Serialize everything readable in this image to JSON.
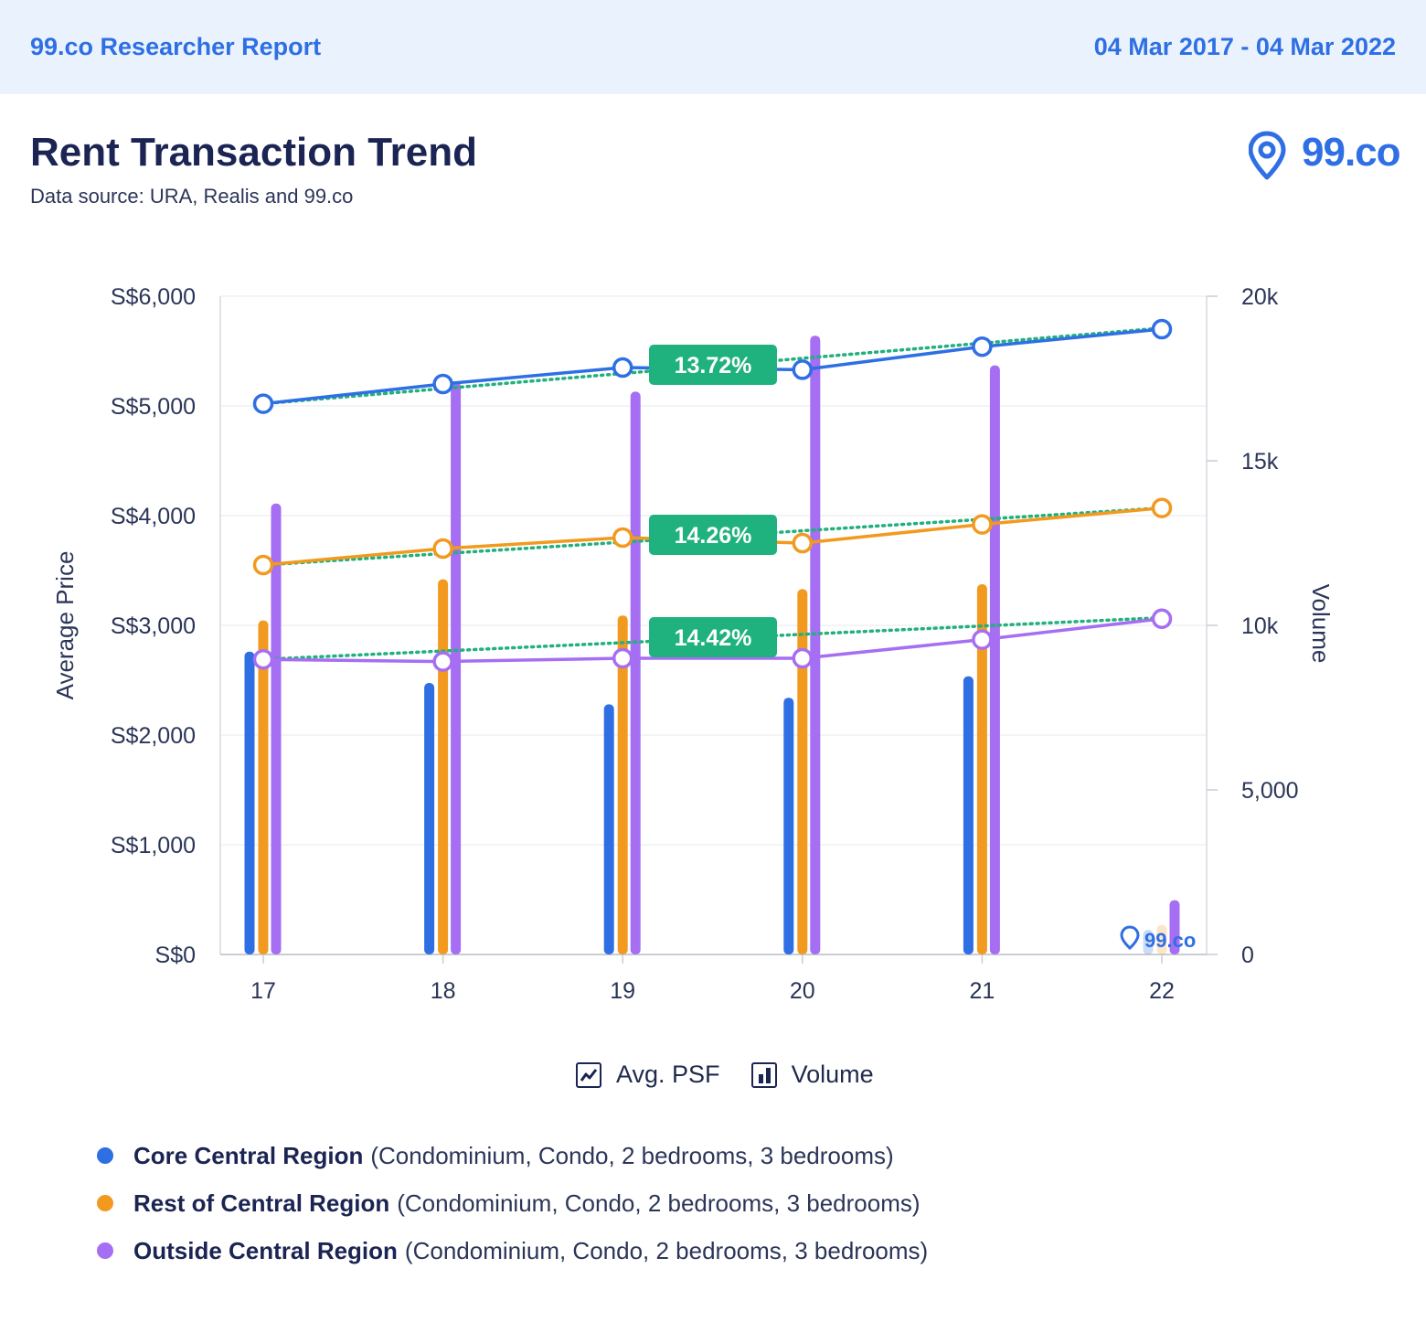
{
  "header": {
    "brand": "99.co Researcher Report",
    "date_range": "04 Mar 2017 - 04 Mar 2022"
  },
  "title": "Rent Transaction Trend",
  "subtitle": "Data source: URA, Realis and 99.co",
  "logo": {
    "text": "99.co",
    "icon": "location-pin-icon"
  },
  "legend_types": [
    {
      "label": "Avg. PSF",
      "icon": "line-chart-icon"
    },
    {
      "label": "Volume",
      "icon": "bar-chart-icon"
    }
  ],
  "series_legend": [
    {
      "name": "Core Central Region",
      "desc": "(Condominium, Condo, 2 bedrooms, 3 bedrooms)",
      "color": "#2f6fe4"
    },
    {
      "name": "Rest of Central Region",
      "desc": "(Condominium, Condo, 2 bedrooms, 3 bedrooms)",
      "color": "#f29a1f"
    },
    {
      "name": "Outside Central Region",
      "desc": "(Condominium, Condo, 2 bedrooms, 3 bedrooms)",
      "color": "#a66ef2"
    }
  ],
  "chart_data": {
    "type": "bar",
    "categories": [
      "17",
      "18",
      "19",
      "20",
      "21",
      "22"
    ],
    "y_left": {
      "label": "Average Price",
      "range": [
        0,
        6000
      ],
      "ticks": [
        "S$0",
        "S$1,000",
        "S$2,000",
        "S$3,000",
        "S$4,000",
        "S$5,000",
        "S$6,000"
      ]
    },
    "y_right": {
      "label": "Volume",
      "range": [
        0,
        20000
      ],
      "ticks": [
        "0",
        "5,000",
        "10k",
        "15k",
        "20k"
      ]
    },
    "grid": true,
    "lines": [
      {
        "name": "Core Central Region",
        "color": "#2f6fe4",
        "values": [
          5020,
          5200,
          5350,
          5330,
          5540,
          5700
        ]
      },
      {
        "name": "Rest of Central Region",
        "color": "#f29a1f",
        "values": [
          3550,
          3700,
          3800,
          3750,
          3920,
          4070
        ]
      },
      {
        "name": "Outside Central Region",
        "color": "#a66ef2",
        "values": [
          2690,
          2670,
          2700,
          2700,
          2870,
          3060
        ]
      }
    ],
    "trend_lines": [
      {
        "color": "#22b07d",
        "start": 5020,
        "end": 5710,
        "label": "13.72%"
      },
      {
        "color": "#22b07d",
        "start": 3550,
        "end": 4070,
        "label": "14.26%"
      },
      {
        "color": "#22b07d",
        "start": 2690,
        "end": 3070,
        "label": "14.42%"
      }
    ],
    "bars": [
      {
        "name": "Core Central Region",
        "color": "#2f6fe4",
        "values": [
          9200,
          8250,
          7600,
          7800,
          8450,
          750
        ]
      },
      {
        "name": "Rest of Central Region",
        "color": "#f29a1f",
        "values": [
          10150,
          11400,
          10300,
          11100,
          11250,
          900
        ]
      },
      {
        "name": "Outside Central Region",
        "color": "#a66ef2",
        "values": [
          13700,
          17400,
          17100,
          18800,
          17900,
          1650
        ]
      }
    ],
    "watermark": "99.co"
  }
}
